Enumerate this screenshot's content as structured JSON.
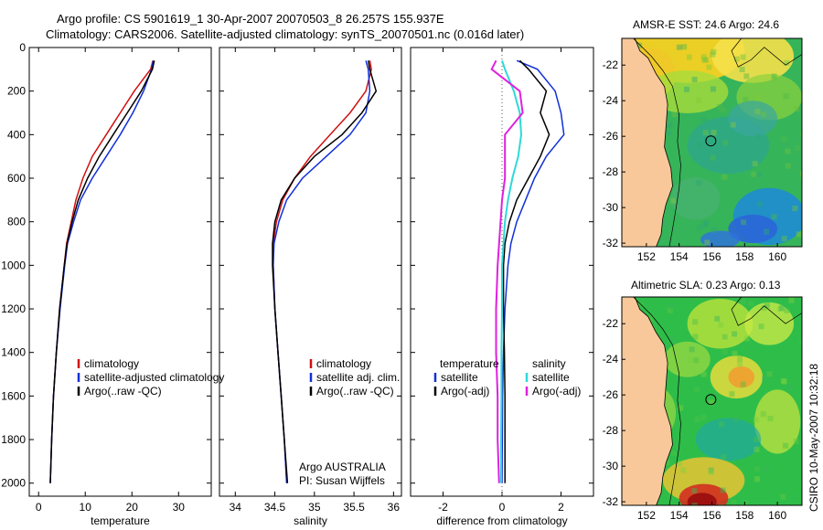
{
  "header": {
    "line1": "Argo profile: CS 5901619_1 30-Apr-2007 20070503_8 26.257S 155.937E",
    "line2": "Climatology: CARS2006. Satellite-adjusted climatology: synTS_20070501.nc (0.016d later)"
  },
  "sidebar_text": "CSIRO 10-May-2007 10:32:18",
  "colors": {
    "red": "#d01010",
    "blue": "#1030d8",
    "black": "#000000",
    "cyan": "#30d8d8",
    "magenta": "#e020e0",
    "land": "#f8c89a"
  },
  "chart_data": [
    {
      "type": "line",
      "id": "temperature-panel",
      "xlabel": "temperature",
      "ylabel": "",
      "xlim": [
        -2,
        37
      ],
      "ylim": [
        2060,
        0
      ],
      "xticks": [
        "0",
        "10",
        "20",
        "30"
      ],
      "xtick_values": [
        0,
        10,
        20,
        30
      ],
      "yticks": [
        "0",
        "200",
        "400",
        "600",
        "800",
        "1000",
        "1200",
        "1400",
        "1600",
        "1800",
        "2000"
      ],
      "ytick_values": [
        0,
        200,
        400,
        600,
        800,
        1000,
        1200,
        1400,
        1600,
        1800,
        2000
      ],
      "legend": [
        "climatology",
        "satellite-adjusted climatology",
        "Argo(..raw -QC)"
      ],
      "series": [
        {
          "name": "climatology",
          "color": "red",
          "depth": [
            60,
            100,
            200,
            300,
            400,
            500,
            600,
            700,
            800,
            900,
            1000,
            1200,
            1400,
            1600,
            1800,
            2000
          ],
          "values": [
            24.5,
            24,
            20.5,
            17.5,
            14.5,
            11.5,
            9.5,
            8,
            7,
            6,
            5.5,
            4.5,
            3.8,
            3.2,
            2.8,
            2.5
          ]
        },
        {
          "name": "satellite-adjusted climatology",
          "color": "blue",
          "depth": [
            60,
            100,
            200,
            300,
            400,
            500,
            600,
            700,
            800,
            900,
            1000,
            1200,
            1400,
            1600,
            1800,
            2000
          ],
          "values": [
            24.6,
            24.2,
            22.5,
            20.2,
            17.5,
            14.5,
            11.5,
            9,
            7.5,
            6.2,
            5.6,
            4.6,
            3.8,
            3.2,
            2.8,
            2.5
          ]
        },
        {
          "name": "Argo(..raw -QC)",
          "color": "black",
          "depth": [
            60,
            100,
            200,
            300,
            400,
            500,
            600,
            700,
            800,
            900,
            1000,
            1200,
            1400,
            1600,
            1800,
            2000
          ],
          "values": [
            24.8,
            24.4,
            22,
            19,
            16,
            13,
            10.5,
            8.5,
            7.2,
            6.1,
            5.5,
            4.5,
            3.8,
            3.2,
            2.8,
            2.5
          ]
        }
      ]
    },
    {
      "type": "line",
      "id": "salinity-panel",
      "xlabel": "salinity",
      "xlim": [
        33.8,
        36.1
      ],
      "ylim": [
        2060,
        0
      ],
      "xticks": [
        "34",
        "34.5",
        "35",
        "35.5",
        "36"
      ],
      "xtick_values": [
        34,
        34.5,
        35,
        35.5,
        36
      ],
      "legend": [
        "climatology",
        "satellite adj. clim.",
        "Argo(..raw -QC)"
      ],
      "annotations": [
        "Argo AUSTRALIA",
        "PI: Susan Wijffels"
      ],
      "series": [
        {
          "name": "climatology",
          "color": "red",
          "depth": [
            60,
            100,
            200,
            300,
            400,
            500,
            600,
            700,
            800,
            900,
            1000,
            1200,
            1400,
            1600,
            1800,
            2000
          ],
          "values": [
            35.7,
            35.72,
            35.65,
            35.45,
            35.2,
            34.95,
            34.75,
            34.6,
            34.52,
            34.48,
            34.48,
            34.5,
            34.54,
            34.58,
            34.62,
            34.65
          ]
        },
        {
          "name": "satellite adj. clim.",
          "color": "blue",
          "depth": [
            60,
            100,
            200,
            300,
            400,
            500,
            600,
            700,
            800,
            900,
            1000,
            1200,
            1400,
            1600,
            1800,
            2000
          ],
          "values": [
            35.65,
            35.68,
            35.7,
            35.65,
            35.45,
            35.15,
            34.85,
            34.65,
            34.55,
            34.49,
            34.48,
            34.5,
            34.54,
            34.58,
            34.62,
            34.65
          ]
        },
        {
          "name": "Argo(..raw -QC)",
          "color": "black",
          "depth": [
            60,
            100,
            200,
            300,
            400,
            500,
            600,
            700,
            800,
            900,
            1000,
            1200,
            1400,
            1600,
            1800,
            2000
          ],
          "values": [
            35.68,
            35.7,
            35.78,
            35.6,
            35.35,
            35.0,
            34.75,
            34.58,
            34.5,
            34.47,
            34.47,
            34.5,
            34.54,
            34.58,
            34.62,
            34.66
          ]
        }
      ]
    },
    {
      "type": "line",
      "id": "difference-panel",
      "xlabel": "difference from climatology",
      "xlim": [
        -3.1,
        3.1
      ],
      "ylim": [
        2060,
        0
      ],
      "xticks": [
        "-2",
        "0",
        "2"
      ],
      "xtick_values": [
        -2,
        0,
        2
      ],
      "legend_left": [
        "temperature",
        "satellite",
        "Argo(-adj)"
      ],
      "legend_right": [
        "salinity",
        "satellite",
        "Argo(-adj)"
      ],
      "series": [
        {
          "name": "temperature satellite",
          "color": "blue",
          "depth": [
            60,
            100,
            200,
            300,
            400,
            500,
            600,
            700,
            800,
            900,
            1000,
            1200,
            1400,
            1600,
            1800,
            2000
          ],
          "values": [
            0.5,
            1.2,
            1.8,
            2.0,
            2.1,
            1.5,
            1.1,
            0.8,
            0.5,
            0.3,
            0.2,
            0.1,
            0.05,
            0.02,
            0.01,
            0
          ]
        },
        {
          "name": "temperature Argo(-adj)",
          "color": "black",
          "depth": [
            60,
            100,
            200,
            300,
            400,
            500,
            600,
            700,
            800,
            900,
            1000,
            1200,
            1400,
            1600,
            1800,
            2000
          ],
          "values": [
            0.6,
            0.9,
            1.5,
            1.3,
            1.6,
            1.3,
            0.9,
            0.5,
            0.25,
            0.1,
            0.05,
            0.05,
            0.08,
            0.1,
            0.1,
            0.1
          ]
        },
        {
          "name": "salinity satellite",
          "color": "cyan",
          "depth": [
            60,
            100,
            200,
            300,
            400,
            500,
            600,
            700,
            800,
            900,
            1000,
            1200,
            1400,
            1600,
            1800,
            2000
          ],
          "values": [
            0,
            0.1,
            0.4,
            0.6,
            0.65,
            0.55,
            0.35,
            0.2,
            0.1,
            0.05,
            0,
            0,
            -0.02,
            -0.02,
            -0.03,
            -0.03
          ]
        },
        {
          "name": "salinity Argo(-adj)",
          "color": "magenta",
          "depth": [
            60,
            100,
            200,
            300,
            400,
            500,
            600,
            700,
            800,
            900,
            1000,
            1200,
            1400,
            1600,
            1800,
            2000
          ],
          "values": [
            -0.2,
            -0.35,
            0.6,
            0.7,
            0.1,
            0.1,
            0.1,
            0,
            -0.05,
            -0.1,
            -0.15,
            -0.2,
            -0.2,
            -0.15,
            -0.15,
            -0.1
          ]
        }
      ]
    },
    {
      "type": "heatmap",
      "id": "sst-map",
      "title": "AMSR-E SST: 24.6 Argo: 24.6",
      "xlim": [
        150.5,
        161.5
      ],
      "ylim": [
        -32.2,
        -20.5
      ],
      "xticks": [
        "152",
        "154",
        "156",
        "158",
        "160"
      ],
      "xtick_values": [
        152,
        154,
        156,
        158,
        160
      ],
      "yticks": [
        "-22",
        "-24",
        "-26",
        "-28",
        "-30",
        "-32"
      ],
      "ytick_values": [
        -22,
        -24,
        -26,
        -28,
        -30,
        -32
      ],
      "marker": {
        "lon": 155.937,
        "lat": -26.257
      }
    },
    {
      "type": "heatmap",
      "id": "sla-map",
      "title": "Altimetric SLA: 0.23 Argo: 0.13",
      "xlim": [
        150.5,
        161.5
      ],
      "ylim": [
        -32.2,
        -20.5
      ],
      "xticks": [
        "152",
        "154",
        "156",
        "158",
        "160"
      ],
      "xtick_values": [
        152,
        154,
        156,
        158,
        160
      ],
      "yticks": [
        "-22",
        "-24",
        "-26",
        "-28",
        "-30",
        "-32"
      ],
      "ytick_values": [
        -22,
        -24,
        -26,
        -28,
        -30,
        -32
      ],
      "marker": {
        "lon": 155.937,
        "lat": -26.257
      }
    }
  ]
}
